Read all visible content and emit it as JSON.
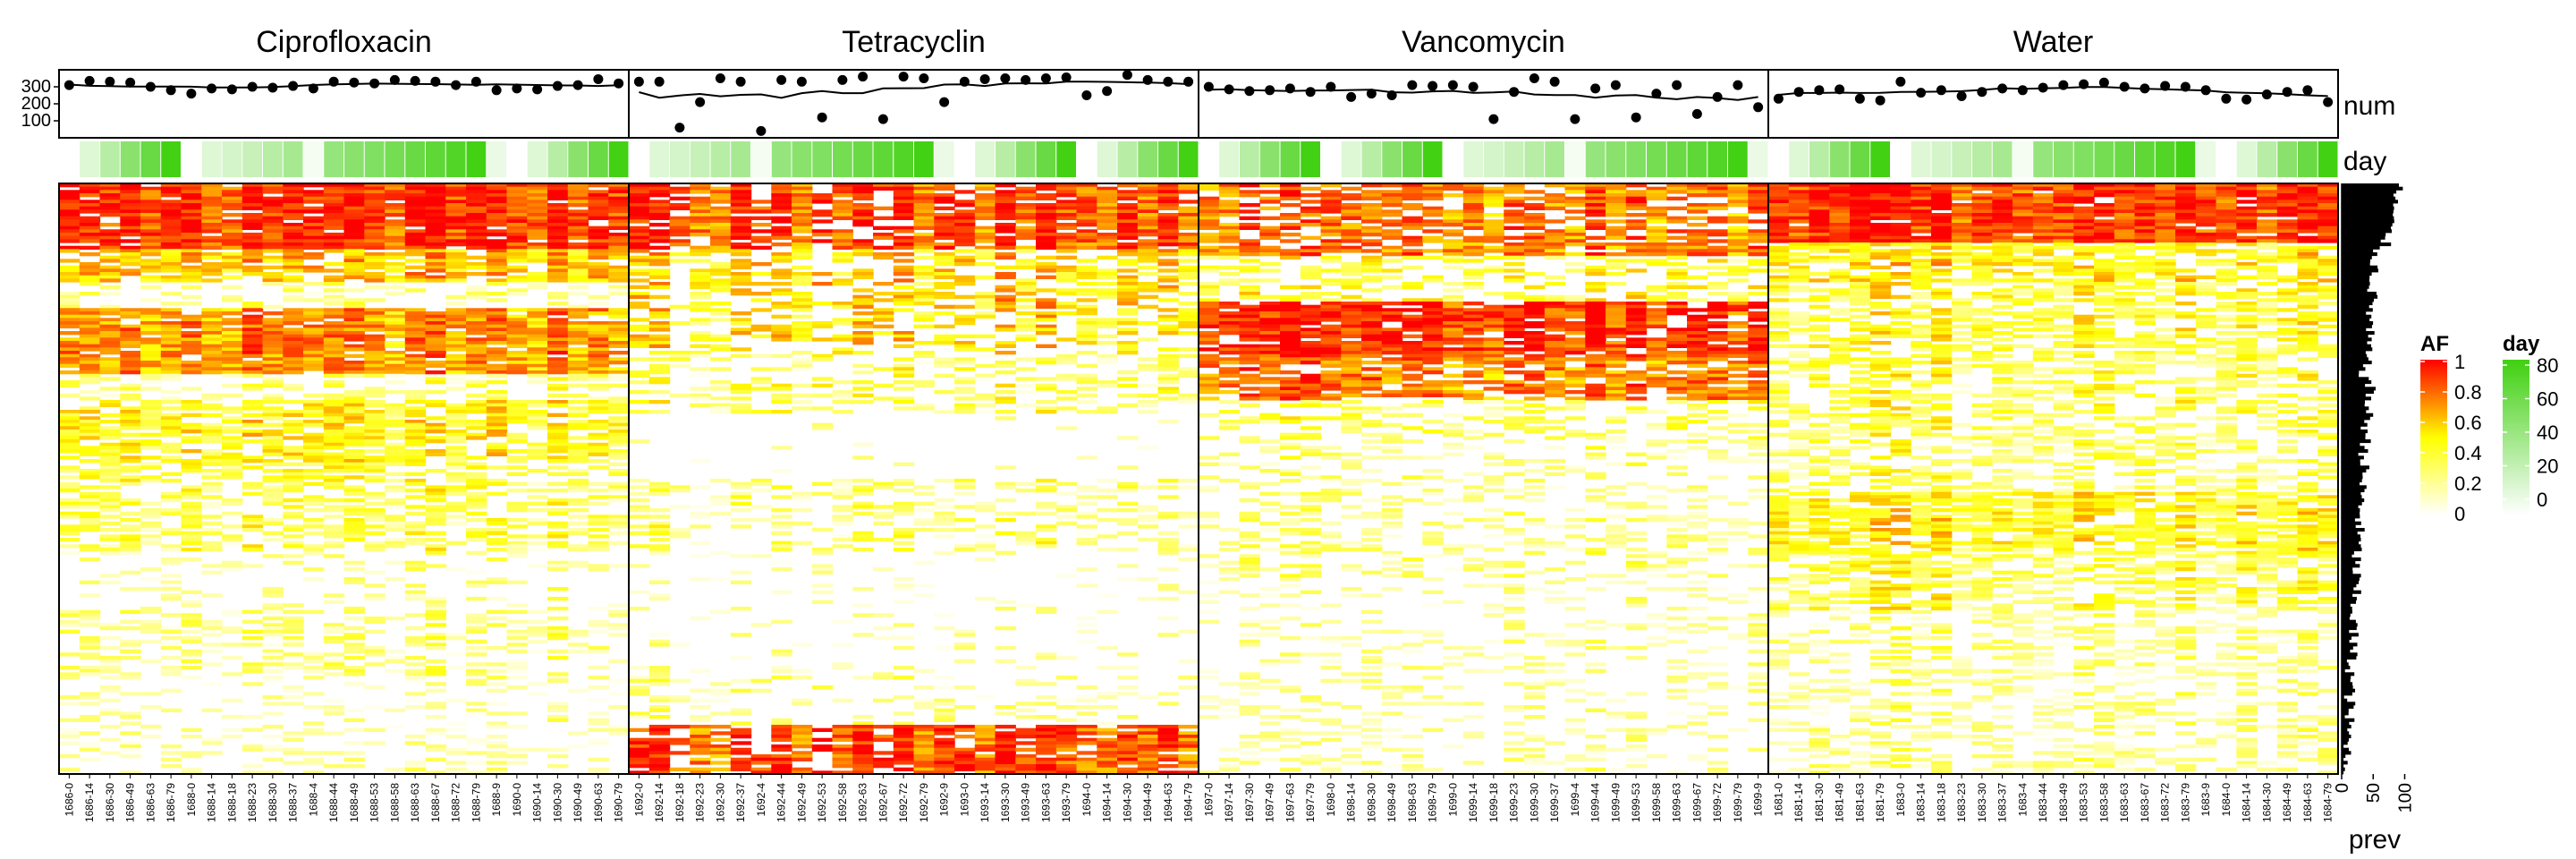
{
  "chart_data": {
    "type": "heatmap",
    "panels": [
      {
        "title": "Ciprofloxacin",
        "samples": [
          "1686-0",
          "1686-14",
          "1686-30",
          "1686-49",
          "1686-63",
          "1686-79",
          "1688-0",
          "1688-14",
          "1688-18",
          "1688-23",
          "1688-30",
          "1688-37",
          "1688-4",
          "1688-44",
          "1688-49",
          "1688-53",
          "1688-58",
          "1688-63",
          "1688-67",
          "1688-72",
          "1688-79",
          "1688-9",
          "1690-0",
          "1690-14",
          "1690-30",
          "1690-49",
          "1690-63",
          "1690-79"
        ],
        "days": [
          0,
          14,
          30,
          49,
          63,
          79,
          0,
          14,
          18,
          23,
          30,
          37,
          4,
          44,
          49,
          53,
          58,
          63,
          67,
          72,
          79,
          9,
          0,
          14,
          30,
          49,
          63,
          79
        ],
        "num": [
          310,
          335,
          330,
          325,
          300,
          280,
          260,
          290,
          285,
          300,
          295,
          305,
          290,
          330,
          325,
          320,
          340,
          335,
          330,
          310,
          330,
          280,
          290,
          285,
          305,
          310,
          345,
          320
        ]
      },
      {
        "title": "Tetracyclin",
        "samples": [
          "1692-0",
          "1692-14",
          "1692-18",
          "1692-23",
          "1692-30",
          "1692-37",
          "1692-4",
          "1692-44",
          "1692-49",
          "1692-53",
          "1692-58",
          "1692-63",
          "1692-67",
          "1692-72",
          "1692-79",
          "1692-9",
          "1693-0",
          "1693-14",
          "1693-30",
          "1693-49",
          "1693-63",
          "1693-79",
          "1694-0",
          "1694-14",
          "1694-30",
          "1694-49",
          "1694-63",
          "1694-79"
        ],
        "days": [
          0,
          14,
          18,
          23,
          30,
          37,
          4,
          44,
          49,
          53,
          58,
          63,
          67,
          72,
          79,
          9,
          0,
          14,
          30,
          49,
          63,
          79,
          0,
          14,
          30,
          49,
          63,
          79
        ],
        "num": [
          330,
          330,
          60,
          210,
          350,
          330,
          40,
          340,
          330,
          120,
          340,
          360,
          110,
          360,
          350,
          210,
          330,
          345,
          350,
          340,
          350,
          355,
          250,
          275,
          370,
          340,
          330,
          330
        ]
      },
      {
        "title": "Vancomycin",
        "samples": [
          "1697-0",
          "1697-14",
          "1697-30",
          "1697-49",
          "1697-63",
          "1697-79",
          "1698-0",
          "1698-14",
          "1698-30",
          "1698-49",
          "1698-63",
          "1698-79",
          "1699-0",
          "1699-14",
          "1699-18",
          "1699-23",
          "1699-30",
          "1699-37",
          "1699-4",
          "1699-44",
          "1699-49",
          "1699-53",
          "1699-58",
          "1699-63",
          "1699-67",
          "1699-72",
          "1699-79",
          "1699-9"
        ],
        "days": [
          0,
          14,
          30,
          49,
          63,
          79,
          0,
          14,
          30,
          49,
          63,
          79,
          0,
          14,
          18,
          23,
          30,
          37,
          4,
          44,
          49,
          53,
          58,
          63,
          67,
          72,
          79,
          9
        ],
        "num": [
          300,
          285,
          275,
          280,
          290,
          270,
          300,
          240,
          260,
          250,
          310,
          305,
          310,
          300,
          110,
          270,
          350,
          330,
          110,
          290,
          310,
          120,
          260,
          310,
          140,
          240,
          310,
          180
        ]
      },
      {
        "title": "Water",
        "samples": [
          "1681-0",
          "1681-14",
          "1681-30",
          "1681-49",
          "1681-63",
          "1681-79",
          "1683-0",
          "1683-14",
          "1683-18",
          "1683-23",
          "1683-30",
          "1683-37",
          "1683-4",
          "1683-44",
          "1683-49",
          "1683-53",
          "1683-58",
          "1683-63",
          "1683-67",
          "1683-72",
          "1683-79",
          "1683-9",
          "1684-0",
          "1684-14",
          "1684-30",
          "1684-49",
          "1684-63",
          "1684-79"
        ],
        "days": [
          0,
          14,
          30,
          49,
          63,
          79,
          0,
          14,
          18,
          23,
          30,
          37,
          4,
          44,
          49,
          53,
          58,
          63,
          67,
          72,
          79,
          9,
          0,
          14,
          30,
          49,
          63,
          79
        ],
        "num": [
          230,
          270,
          280,
          285,
          230,
          220,
          330,
          265,
          280,
          245,
          270,
          290,
          280,
          295,
          310,
          315,
          325,
          300,
          290,
          305,
          300,
          280,
          230,
          225,
          255,
          270,
          280,
          210
        ]
      }
    ],
    "num_axis": {
      "label": "num",
      "ticks": [
        100,
        200,
        300
      ],
      "range": [
        0,
        400
      ]
    },
    "day_track": {
      "label": "day"
    },
    "prev_axis": {
      "label": "prev",
      "ticks": [
        0,
        50,
        100
      ],
      "range": [
        0,
        105
      ]
    },
    "legends": [
      {
        "title": "AF",
        "ticks": [
          "0",
          "0.2",
          "0.4",
          "0.6",
          "0.8",
          "1"
        ],
        "colors": [
          "#ffffff",
          "#ffff00",
          "#ff0000"
        ]
      },
      {
        "title": "day",
        "ticks": [
          "0",
          "20",
          "40",
          "60",
          "80"
        ],
        "colors": [
          "#ffffff",
          "#40d010"
        ]
      }
    ]
  }
}
